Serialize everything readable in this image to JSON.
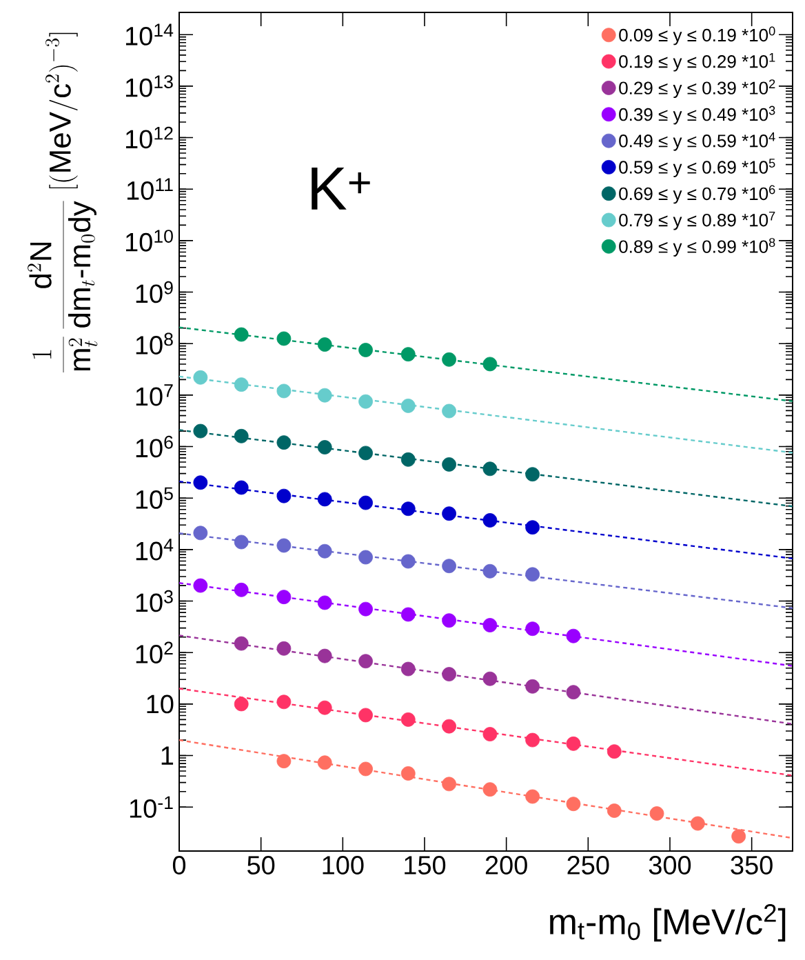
{
  "chart_data": {
    "type": "scatter",
    "xlabel": "m$_{t}$-m$_{0}$ [MeV/c$^{2}$]",
    "ylabel": "\\frac{1}{\\mathrm{m}_{t}^{2}}\\,\\frac{\\mathrm{d}^{2}\\mathrm{N}}{\\mathrm{dm}_{t}\\mbox{-}\\mathrm{m}_{0}\\mathrm{dy}}\\;[(\\mathrm{MeV}/\\mathrm{c}^{2})^{-3}]",
    "annotations": [
      "K$^{+}$"
    ],
    "log": "y",
    "marker": "circle",
    "legend": "top right",
    "xlim": [
      0,
      375
    ],
    "ylim": [
      0.014,
      270000000000000.0
    ],
    "xticks": [
      0,
      50,
      100,
      150,
      200,
      250,
      300,
      350
    ],
    "yticks": [
      {
        "value": 0.1,
        "label": "10$^{-1}$"
      },
      1,
      10,
      {
        "value": 100,
        "label": "10$^{2}$"
      },
      {
        "value": 1000,
        "label": "10$^{3}$"
      },
      {
        "value": 10000,
        "label": "10$^{4}$"
      },
      {
        "value": 100000,
        "label": "10$^{5}$"
      },
      {
        "value": 1000000,
        "label": "10$^{6}$"
      },
      {
        "value": 10000000,
        "label": "10$^{7}$"
      },
      {
        "value": 100000000,
        "label": "10$^{8}$"
      },
      {
        "value": 1000000000,
        "label": "10$^{9}$"
      },
      {
        "value": 10000000000,
        "label": "10$^{10}$"
      },
      {
        "value": 100000000000,
        "label": "10$^{11}$"
      },
      {
        "value": 1000000000000,
        "label": "10$^{12}$"
      },
      {
        "value": 10000000000000,
        "label": "10$^{13}$"
      },
      {
        "value": 100000000000000,
        "label": "10$^{14}$"
      }
    ],
    "series": [
      {
        "name": "0.09 ≤ y ≤ 0.19 *10$^{0}$",
        "color": "#ff6f61",
        "x": [
          64,
          89,
          114,
          140,
          165,
          190,
          216,
          241,
          266,
          292,
          317,
          342
        ],
        "values": [
          0.78,
          0.73,
          0.55,
          0.45,
          0.28,
          0.22,
          0.16,
          0.115,
          0.085,
          0.075,
          0.048,
          0.027
        ]
      },
      {
        "name": "0.19 ≤ y ≤ 0.29 *10$^{1}$",
        "color": "#ff3366",
        "x": [
          38,
          64,
          89,
          114,
          140,
          165,
          190,
          216,
          241,
          266
        ],
        "values": [
          10,
          11,
          8.5,
          6.1,
          5.0,
          3.7,
          2.6,
          2.0,
          1.7,
          1.2
        ]
      },
      {
        "name": "0.29 ≤ y ≤ 0.39 *10$^{2}$",
        "color": "#993399",
        "x": [
          38,
          64,
          89,
          114,
          140,
          165,
          190,
          216,
          241
        ],
        "values": [
          150,
          120,
          86,
          68,
          48,
          38,
          31,
          22,
          17
        ]
      },
      {
        "name": "0.39 ≤ y ≤ 0.49 *10$^{3}$",
        "color": "#9900ff",
        "x": [
          13,
          38,
          64,
          89,
          114,
          140,
          165,
          190,
          216,
          241
        ],
        "values": [
          2000,
          1650,
          1200,
          930,
          700,
          550,
          420,
          340,
          290,
          210
        ]
      },
      {
        "name": "0.49 ≤ y ≤ 0.59 *10$^{4}$",
        "color": "#6666cc",
        "x": [
          13,
          38,
          64,
          89,
          114,
          140,
          165,
          190,
          216
        ],
        "values": [
          21000,
          14000,
          12000,
          9300,
          7100,
          5900,
          4800,
          3800,
          3300
        ]
      },
      {
        "name": "0.59 ≤ y ≤ 0.69 *10$^{5}$",
        "color": "#0000cc",
        "x": [
          13,
          38,
          64,
          89,
          114,
          140,
          165,
          190,
          216
        ],
        "values": [
          200000,
          160000,
          110000,
          95000,
          81000,
          62000,
          50000,
          37000,
          27000
        ]
      },
      {
        "name": "0.69 ≤ y ≤ 0.79 *10$^{6}$",
        "color": "#006666",
        "x": [
          13,
          38,
          64,
          89,
          114,
          140,
          165,
          190,
          216
        ],
        "values": [
          2000000,
          1600000,
          1200000,
          970000,
          750000,
          560000,
          450000,
          370000,
          290000
        ]
      },
      {
        "name": "0.79 ≤ y ≤ 0.89 *10$^{7}$",
        "color": "#66cccc",
        "x": [
          13,
          38,
          64,
          89,
          114,
          140,
          165
        ],
        "values": [
          22000000,
          16000000,
          12000000,
          9900000,
          7500000,
          6200000,
          4900000
        ]
      },
      {
        "name": "0.89 ≤ y ≤ 0.99 *10$^{8}$",
        "color": "#009966",
        "x": [
          38,
          64,
          89,
          114,
          140,
          165,
          190
        ],
        "values": [
          150000000,
          125000000,
          96000000,
          75000000,
          62000000,
          49000000,
          40000000
        ]
      },
      {
        "type": "line",
        "line_style": "dashed",
        "marker": "none",
        "color": "#ff6f61",
        "x": [
          0,
          375
        ],
        "values": [
          2.0,
          0.025
        ]
      },
      {
        "type": "line",
        "line_style": "dashed",
        "marker": "none",
        "color": "#ff3366",
        "x": [
          0,
          375
        ],
        "values": [
          20,
          0.41
        ]
      },
      {
        "type": "line",
        "line_style": "dashed",
        "marker": "none",
        "color": "#993399",
        "x": [
          0,
          375
        ],
        "values": [
          215,
          4.1
        ]
      },
      {
        "type": "line",
        "line_style": "dashed",
        "marker": "none",
        "color": "#9900ff",
        "x": [
          0,
          375
        ],
        "values": [
          2250,
          55
        ]
      },
      {
        "type": "line",
        "line_style": "dashed",
        "marker": "none",
        "color": "#6666cc",
        "x": [
          0,
          375
        ],
        "values": [
          20700,
          730
        ]
      },
      {
        "type": "line",
        "line_style": "dashed",
        "marker": "none",
        "color": "#0000cc",
        "x": [
          0,
          375
        ],
        "values": [
          210000,
          6700
        ]
      },
      {
        "type": "line",
        "line_style": "dashed",
        "marker": "none",
        "color": "#006666",
        "x": [
          0,
          375
        ],
        "values": [
          2100000,
          69000
        ]
      },
      {
        "type": "line",
        "line_style": "dashed",
        "marker": "none",
        "color": "#66cccc",
        "x": [
          0,
          375
        ],
        "values": [
          23000000,
          760000
        ]
      },
      {
        "type": "line",
        "line_style": "dashed",
        "marker": "none",
        "color": "#009966",
        "x": [
          0,
          375
        ],
        "values": [
          207000000,
          7600000
        ]
      }
    ]
  }
}
